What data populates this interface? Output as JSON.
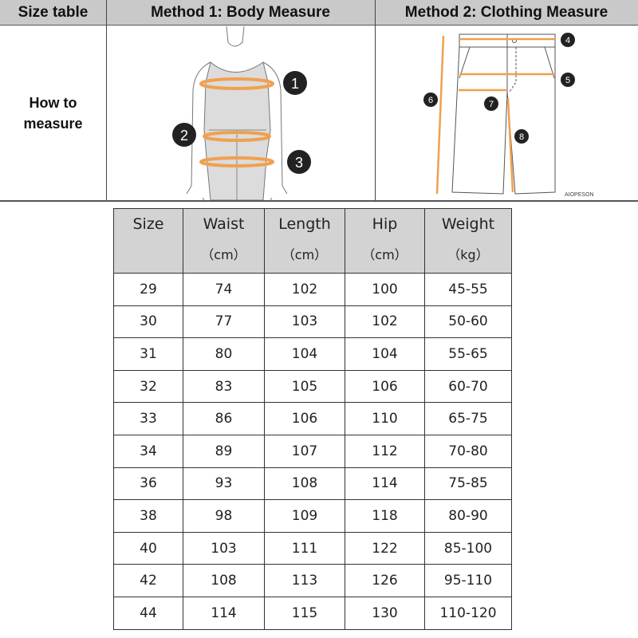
{
  "header": {
    "size_table": "Size table",
    "method1": "Method 1: Body  Measure",
    "method2": "Method 2: Clothing Measure"
  },
  "how_to_measure": [
    "How to",
    "measure"
  ],
  "body_markers": [
    "1",
    "2",
    "3"
  ],
  "clothing_markers": [
    "4",
    "5",
    "6",
    "7",
    "8"
  ],
  "watermark": "AIOPESON",
  "colors": {
    "header_bg": "#c9c9c9",
    "measure_line": "#f0a050",
    "table_header_bg": "#d3d3d3"
  },
  "table": {
    "columns": [
      {
        "label": "Size",
        "unit": ""
      },
      {
        "label": "Waist",
        "unit": "（cm）"
      },
      {
        "label": "Length",
        "unit": "（cm）"
      },
      {
        "label": "Hip",
        "unit": "（cm）"
      },
      {
        "label": "Weight",
        "unit": "（kg）"
      }
    ],
    "rows": [
      [
        "29",
        "74",
        "102",
        "100",
        "45-55"
      ],
      [
        "30",
        "77",
        "103",
        "102",
        "50-60"
      ],
      [
        "31",
        "80",
        "104",
        "104",
        "55-65"
      ],
      [
        "32",
        "83",
        "105",
        "106",
        "60-70"
      ],
      [
        "33",
        "86",
        "106",
        "110",
        "65-75"
      ],
      [
        "34",
        "89",
        "107",
        "112",
        "70-80"
      ],
      [
        "36",
        "93",
        "108",
        "114",
        "75-85"
      ],
      [
        "38",
        "98",
        "109",
        "118",
        "80-90"
      ],
      [
        "40",
        "103",
        "111",
        "122",
        "85-100"
      ],
      [
        "42",
        "108",
        "113",
        "126",
        "95-110"
      ],
      [
        "44",
        "114",
        "115",
        "130",
        "110-120"
      ]
    ]
  }
}
